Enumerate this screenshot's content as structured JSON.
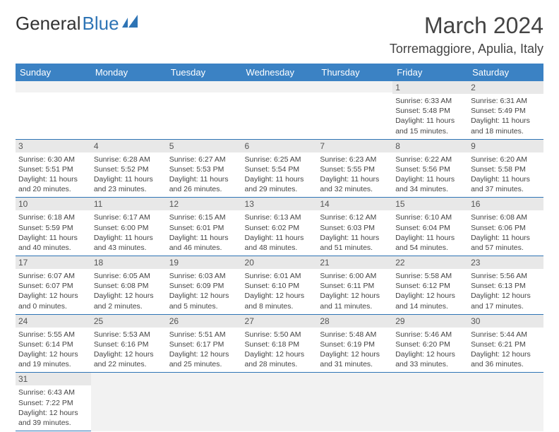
{
  "logo": {
    "text1": "General",
    "text2": "Blue",
    "text1_color": "#333333",
    "text2_color": "#2e74b5"
  },
  "title": "March 2024",
  "location": "Torremaggiore, Apulia, Italy",
  "header_bg": "#3b82c4",
  "header_fg": "#ffffff",
  "daynum_bg": "#e8e8e8",
  "border_color": "#2e74b5",
  "days_of_week": [
    "Sunday",
    "Monday",
    "Tuesday",
    "Wednesday",
    "Thursday",
    "Friday",
    "Saturday"
  ],
  "weeks": [
    [
      null,
      null,
      null,
      null,
      null,
      {
        "n": "1",
        "sunrise": "6:33 AM",
        "sunset": "5:48 PM",
        "daylight": "11 hours and 15 minutes."
      },
      {
        "n": "2",
        "sunrise": "6:31 AM",
        "sunset": "5:49 PM",
        "daylight": "11 hours and 18 minutes."
      }
    ],
    [
      {
        "n": "3",
        "sunrise": "6:30 AM",
        "sunset": "5:51 PM",
        "daylight": "11 hours and 20 minutes."
      },
      {
        "n": "4",
        "sunrise": "6:28 AM",
        "sunset": "5:52 PM",
        "daylight": "11 hours and 23 minutes."
      },
      {
        "n": "5",
        "sunrise": "6:27 AM",
        "sunset": "5:53 PM",
        "daylight": "11 hours and 26 minutes."
      },
      {
        "n": "6",
        "sunrise": "6:25 AM",
        "sunset": "5:54 PM",
        "daylight": "11 hours and 29 minutes."
      },
      {
        "n": "7",
        "sunrise": "6:23 AM",
        "sunset": "5:55 PM",
        "daylight": "11 hours and 32 minutes."
      },
      {
        "n": "8",
        "sunrise": "6:22 AM",
        "sunset": "5:56 PM",
        "daylight": "11 hours and 34 minutes."
      },
      {
        "n": "9",
        "sunrise": "6:20 AM",
        "sunset": "5:58 PM",
        "daylight": "11 hours and 37 minutes."
      }
    ],
    [
      {
        "n": "10",
        "sunrise": "6:18 AM",
        "sunset": "5:59 PM",
        "daylight": "11 hours and 40 minutes."
      },
      {
        "n": "11",
        "sunrise": "6:17 AM",
        "sunset": "6:00 PM",
        "daylight": "11 hours and 43 minutes."
      },
      {
        "n": "12",
        "sunrise": "6:15 AM",
        "sunset": "6:01 PM",
        "daylight": "11 hours and 46 minutes."
      },
      {
        "n": "13",
        "sunrise": "6:13 AM",
        "sunset": "6:02 PM",
        "daylight": "11 hours and 48 minutes."
      },
      {
        "n": "14",
        "sunrise": "6:12 AM",
        "sunset": "6:03 PM",
        "daylight": "11 hours and 51 minutes."
      },
      {
        "n": "15",
        "sunrise": "6:10 AM",
        "sunset": "6:04 PM",
        "daylight": "11 hours and 54 minutes."
      },
      {
        "n": "16",
        "sunrise": "6:08 AM",
        "sunset": "6:06 PM",
        "daylight": "11 hours and 57 minutes."
      }
    ],
    [
      {
        "n": "17",
        "sunrise": "6:07 AM",
        "sunset": "6:07 PM",
        "daylight": "12 hours and 0 minutes."
      },
      {
        "n": "18",
        "sunrise": "6:05 AM",
        "sunset": "6:08 PM",
        "daylight": "12 hours and 2 minutes."
      },
      {
        "n": "19",
        "sunrise": "6:03 AM",
        "sunset": "6:09 PM",
        "daylight": "12 hours and 5 minutes."
      },
      {
        "n": "20",
        "sunrise": "6:01 AM",
        "sunset": "6:10 PM",
        "daylight": "12 hours and 8 minutes."
      },
      {
        "n": "21",
        "sunrise": "6:00 AM",
        "sunset": "6:11 PM",
        "daylight": "12 hours and 11 minutes."
      },
      {
        "n": "22",
        "sunrise": "5:58 AM",
        "sunset": "6:12 PM",
        "daylight": "12 hours and 14 minutes."
      },
      {
        "n": "23",
        "sunrise": "5:56 AM",
        "sunset": "6:13 PM",
        "daylight": "12 hours and 17 minutes."
      }
    ],
    [
      {
        "n": "24",
        "sunrise": "5:55 AM",
        "sunset": "6:14 PM",
        "daylight": "12 hours and 19 minutes."
      },
      {
        "n": "25",
        "sunrise": "5:53 AM",
        "sunset": "6:16 PM",
        "daylight": "12 hours and 22 minutes."
      },
      {
        "n": "26",
        "sunrise": "5:51 AM",
        "sunset": "6:17 PM",
        "daylight": "12 hours and 25 minutes."
      },
      {
        "n": "27",
        "sunrise": "5:50 AM",
        "sunset": "6:18 PM",
        "daylight": "12 hours and 28 minutes."
      },
      {
        "n": "28",
        "sunrise": "5:48 AM",
        "sunset": "6:19 PM",
        "daylight": "12 hours and 31 minutes."
      },
      {
        "n": "29",
        "sunrise": "5:46 AM",
        "sunset": "6:20 PM",
        "daylight": "12 hours and 33 minutes."
      },
      {
        "n": "30",
        "sunrise": "5:44 AM",
        "sunset": "6:21 PM",
        "daylight": "12 hours and 36 minutes."
      }
    ],
    [
      {
        "n": "31",
        "sunrise": "6:43 AM",
        "sunset": "7:22 PM",
        "daylight": "12 hours and 39 minutes."
      },
      null,
      null,
      null,
      null,
      null,
      null
    ]
  ],
  "labels": {
    "sunrise": "Sunrise:",
    "sunset": "Sunset:",
    "daylight": "Daylight:"
  }
}
